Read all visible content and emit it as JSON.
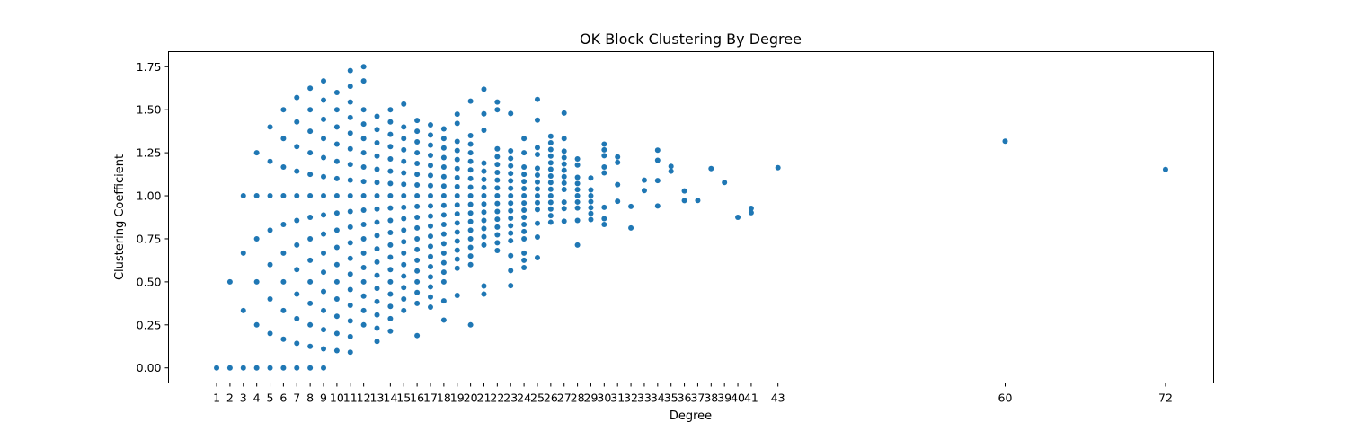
{
  "chart_data": {
    "type": "scatter",
    "title": "OK Block Clustering By Degree",
    "xlabel": "Degree",
    "ylabel": "Clustering Coefficient",
    "xlim": [
      -2.6,
      75.6
    ],
    "ylim": [
      -0.0875,
      1.8375
    ],
    "grid": false,
    "color": "#1f77b4",
    "x_ticks": [
      1,
      2,
      3,
      4,
      5,
      6,
      7,
      8,
      9,
      10,
      11,
      12,
      13,
      14,
      15,
      16,
      17,
      18,
      19,
      20,
      21,
      22,
      23,
      24,
      25,
      26,
      27,
      28,
      29,
      30,
      31,
      32,
      33,
      34,
      35,
      36,
      37,
      38,
      39,
      40,
      41,
      43,
      60,
      72
    ],
    "y_ticks": [
      0.0,
      0.25,
      0.5,
      0.75,
      1.0,
      1.25,
      1.5,
      1.75
    ],
    "y_tick_labels": [
      "0.00",
      "0.25",
      "0.50",
      "0.75",
      "1.00",
      "1.25",
      "1.50",
      "1.75"
    ],
    "points": [
      [
        1,
        0
      ],
      [
        2,
        0
      ],
      [
        2,
        0.5
      ],
      [
        3,
        0
      ],
      [
        3,
        0.333
      ],
      [
        3,
        0.667
      ],
      [
        3,
        1.0
      ],
      [
        4,
        0
      ],
      [
        4,
        0.25
      ],
      [
        4,
        0.5
      ],
      [
        4,
        0.75
      ],
      [
        4,
        1.0
      ],
      [
        4,
        1.25
      ],
      [
        5,
        0
      ],
      [
        5,
        0.2
      ],
      [
        5,
        0.4
      ],
      [
        5,
        0.6
      ],
      [
        5,
        0.8
      ],
      [
        5,
        1.0
      ],
      [
        5,
        1.2
      ],
      [
        5,
        1.4
      ],
      [
        6,
        0
      ],
      [
        6,
        0.167
      ],
      [
        6,
        0.333
      ],
      [
        6,
        0.5
      ],
      [
        6,
        0.667
      ],
      [
        6,
        0.833
      ],
      [
        6,
        1.0
      ],
      [
        6,
        1.167
      ],
      [
        6,
        1.333
      ],
      [
        6,
        1.5
      ],
      [
        7,
        0
      ],
      [
        7,
        0.143
      ],
      [
        7,
        0.286
      ],
      [
        7,
        0.429
      ],
      [
        7,
        0.571
      ],
      [
        7,
        0.714
      ],
      [
        7,
        0.857
      ],
      [
        7,
        1.0
      ],
      [
        7,
        1.143
      ],
      [
        7,
        1.286
      ],
      [
        7,
        1.429
      ],
      [
        7,
        1.571
      ],
      [
        8,
        0
      ],
      [
        8,
        0.125
      ],
      [
        8,
        0.25
      ],
      [
        8,
        0.375
      ],
      [
        8,
        0.5
      ],
      [
        8,
        0.625
      ],
      [
        8,
        0.75
      ],
      [
        8,
        0.875
      ],
      [
        8,
        1.0
      ],
      [
        8,
        1.125
      ],
      [
        8,
        1.25
      ],
      [
        8,
        1.375
      ],
      [
        8,
        1.5
      ],
      [
        8,
        1.625
      ],
      [
        9,
        0
      ],
      [
        9,
        0.111
      ],
      [
        9,
        0.222
      ],
      [
        9,
        0.333
      ],
      [
        9,
        0.444
      ],
      [
        9,
        0.556
      ],
      [
        9,
        0.667
      ],
      [
        9,
        0.778
      ],
      [
        9,
        0.889
      ],
      [
        9,
        1.0
      ],
      [
        9,
        1.111
      ],
      [
        9,
        1.222
      ],
      [
        9,
        1.333
      ],
      [
        9,
        1.444
      ],
      [
        9,
        1.556
      ],
      [
        9,
        1.667
      ],
      [
        10,
        0.1
      ],
      [
        10,
        0.2
      ],
      [
        10,
        0.3
      ],
      [
        10,
        0.4
      ],
      [
        10,
        0.5
      ],
      [
        10,
        0.6
      ],
      [
        10,
        0.7
      ],
      [
        10,
        0.8
      ],
      [
        10,
        0.9
      ],
      [
        10,
        1.0
      ],
      [
        10,
        1.1
      ],
      [
        10,
        1.2
      ],
      [
        10,
        1.3
      ],
      [
        10,
        1.4
      ],
      [
        10,
        1.5
      ],
      [
        10,
        1.6
      ],
      [
        11,
        0.091
      ],
      [
        11,
        0.182
      ],
      [
        11,
        0.273
      ],
      [
        11,
        0.364
      ],
      [
        11,
        0.455
      ],
      [
        11,
        0.545
      ],
      [
        11,
        0.636
      ],
      [
        11,
        0.727
      ],
      [
        11,
        0.818
      ],
      [
        11,
        0.909
      ],
      [
        11,
        1.0
      ],
      [
        11,
        1.091
      ],
      [
        11,
        1.182
      ],
      [
        11,
        1.273
      ],
      [
        11,
        1.364
      ],
      [
        11,
        1.455
      ],
      [
        11,
        1.545
      ],
      [
        11,
        1.636
      ],
      [
        11,
        1.727
      ],
      [
        12,
        0.25
      ],
      [
        12,
        0.333
      ],
      [
        12,
        0.417
      ],
      [
        12,
        0.5
      ],
      [
        12,
        0.583
      ],
      [
        12,
        0.667
      ],
      [
        12,
        0.75
      ],
      [
        12,
        0.833
      ],
      [
        12,
        0.917
      ],
      [
        12,
        1.0
      ],
      [
        12,
        1.083
      ],
      [
        12,
        1.167
      ],
      [
        12,
        1.25
      ],
      [
        12,
        1.333
      ],
      [
        12,
        1.417
      ],
      [
        12,
        1.5
      ],
      [
        12,
        1.667
      ],
      [
        12,
        1.75
      ],
      [
        13,
        0.154
      ],
      [
        13,
        0.231
      ],
      [
        13,
        0.308
      ],
      [
        13,
        0.385
      ],
      [
        13,
        0.462
      ],
      [
        13,
        0.538
      ],
      [
        13,
        0.615
      ],
      [
        13,
        0.692
      ],
      [
        13,
        0.769
      ],
      [
        13,
        0.846
      ],
      [
        13,
        0.923
      ],
      [
        13,
        1.0
      ],
      [
        13,
        1.077
      ],
      [
        13,
        1.154
      ],
      [
        13,
        1.231
      ],
      [
        13,
        1.308
      ],
      [
        13,
        1.385
      ],
      [
        13,
        1.462
      ],
      [
        14,
        0.214
      ],
      [
        14,
        0.286
      ],
      [
        14,
        0.357
      ],
      [
        14,
        0.429
      ],
      [
        14,
        0.5
      ],
      [
        14,
        0.571
      ],
      [
        14,
        0.643
      ],
      [
        14,
        0.714
      ],
      [
        14,
        0.786
      ],
      [
        14,
        0.857
      ],
      [
        14,
        0.929
      ],
      [
        14,
        1.0
      ],
      [
        14,
        1.071
      ],
      [
        14,
        1.143
      ],
      [
        14,
        1.214
      ],
      [
        14,
        1.286
      ],
      [
        14,
        1.357
      ],
      [
        14,
        1.429
      ],
      [
        14,
        1.5
      ],
      [
        15,
        0.333
      ],
      [
        15,
        0.4
      ],
      [
        15,
        0.467
      ],
      [
        15,
        0.533
      ],
      [
        15,
        0.6
      ],
      [
        15,
        0.667
      ],
      [
        15,
        0.733
      ],
      [
        15,
        0.8
      ],
      [
        15,
        0.867
      ],
      [
        15,
        0.933
      ],
      [
        15,
        1.0
      ],
      [
        15,
        1.067
      ],
      [
        15,
        1.133
      ],
      [
        15,
        1.2
      ],
      [
        15,
        1.267
      ],
      [
        15,
        1.333
      ],
      [
        15,
        1.4
      ],
      [
        15,
        1.533
      ],
      [
        16,
        0.188
      ],
      [
        16,
        0.375
      ],
      [
        16,
        0.438
      ],
      [
        16,
        0.5
      ],
      [
        16,
        0.563
      ],
      [
        16,
        0.625
      ],
      [
        16,
        0.688
      ],
      [
        16,
        0.75
      ],
      [
        16,
        0.813
      ],
      [
        16,
        0.875
      ],
      [
        16,
        0.938
      ],
      [
        16,
        1.0
      ],
      [
        16,
        1.063
      ],
      [
        16,
        1.125
      ],
      [
        16,
        1.188
      ],
      [
        16,
        1.25
      ],
      [
        16,
        1.313
      ],
      [
        16,
        1.375
      ],
      [
        16,
        1.438
      ],
      [
        17,
        0.353
      ],
      [
        17,
        0.412
      ],
      [
        17,
        0.471
      ],
      [
        17,
        0.529
      ],
      [
        17,
        0.588
      ],
      [
        17,
        0.647
      ],
      [
        17,
        0.706
      ],
      [
        17,
        0.765
      ],
      [
        17,
        0.824
      ],
      [
        17,
        0.882
      ],
      [
        17,
        0.941
      ],
      [
        17,
        1.0
      ],
      [
        17,
        1.059
      ],
      [
        17,
        1.118
      ],
      [
        17,
        1.176
      ],
      [
        17,
        1.235
      ],
      [
        17,
        1.294
      ],
      [
        17,
        1.353
      ],
      [
        17,
        1.412
      ],
      [
        18,
        0.278
      ],
      [
        18,
        0.389
      ],
      [
        18,
        0.5
      ],
      [
        18,
        0.556
      ],
      [
        18,
        0.611
      ],
      [
        18,
        0.667
      ],
      [
        18,
        0.722
      ],
      [
        18,
        0.778
      ],
      [
        18,
        0.833
      ],
      [
        18,
        0.889
      ],
      [
        18,
        0.944
      ],
      [
        18,
        1.0
      ],
      [
        18,
        1.056
      ],
      [
        18,
        1.111
      ],
      [
        18,
        1.167
      ],
      [
        18,
        1.222
      ],
      [
        18,
        1.278
      ],
      [
        18,
        1.333
      ],
      [
        18,
        1.389
      ],
      [
        19,
        0.421
      ],
      [
        19,
        0.579
      ],
      [
        19,
        0.632
      ],
      [
        19,
        0.684
      ],
      [
        19,
        0.737
      ],
      [
        19,
        0.789
      ],
      [
        19,
        0.842
      ],
      [
        19,
        0.895
      ],
      [
        19,
        0.947
      ],
      [
        19,
        1.0
      ],
      [
        19,
        1.053
      ],
      [
        19,
        1.105
      ],
      [
        19,
        1.158
      ],
      [
        19,
        1.211
      ],
      [
        19,
        1.263
      ],
      [
        19,
        1.316
      ],
      [
        19,
        1.421
      ],
      [
        19,
        1.474
      ],
      [
        20,
        0.25
      ],
      [
        20,
        0.6
      ],
      [
        20,
        0.65
      ],
      [
        20,
        0.7
      ],
      [
        20,
        0.75
      ],
      [
        20,
        0.8
      ],
      [
        20,
        0.85
      ],
      [
        20,
        0.9
      ],
      [
        20,
        0.95
      ],
      [
        20,
        1.0
      ],
      [
        20,
        1.05
      ],
      [
        20,
        1.1
      ],
      [
        20,
        1.15
      ],
      [
        20,
        1.2
      ],
      [
        20,
        1.25
      ],
      [
        20,
        1.3
      ],
      [
        20,
        1.35
      ],
      [
        20,
        1.55
      ],
      [
        21,
        0.429
      ],
      [
        21,
        0.476
      ],
      [
        21,
        0.714
      ],
      [
        21,
        0.762
      ],
      [
        21,
        0.81
      ],
      [
        21,
        0.857
      ],
      [
        21,
        0.905
      ],
      [
        21,
        0.952
      ],
      [
        21,
        1.0
      ],
      [
        21,
        1.048
      ],
      [
        21,
        1.095
      ],
      [
        21,
        1.143
      ],
      [
        21,
        1.19
      ],
      [
        21,
        1.381
      ],
      [
        21,
        1.476
      ],
      [
        21,
        1.619
      ],
      [
        22,
        0.682
      ],
      [
        22,
        0.727
      ],
      [
        22,
        0.773
      ],
      [
        22,
        0.818
      ],
      [
        22,
        0.864
      ],
      [
        22,
        0.909
      ],
      [
        22,
        0.955
      ],
      [
        22,
        1.0
      ],
      [
        22,
        1.045
      ],
      [
        22,
        1.091
      ],
      [
        22,
        1.136
      ],
      [
        22,
        1.182
      ],
      [
        22,
        1.227
      ],
      [
        22,
        1.273
      ],
      [
        22,
        1.5
      ],
      [
        22,
        1.545
      ],
      [
        23,
        0.478
      ],
      [
        23,
        0.565
      ],
      [
        23,
        0.652
      ],
      [
        23,
        0.739
      ],
      [
        23,
        0.783
      ],
      [
        23,
        0.826
      ],
      [
        23,
        0.87
      ],
      [
        23,
        0.913
      ],
      [
        23,
        0.957
      ],
      [
        23,
        1.0
      ],
      [
        23,
        1.043
      ],
      [
        23,
        1.087
      ],
      [
        23,
        1.13
      ],
      [
        23,
        1.174
      ],
      [
        23,
        1.217
      ],
      [
        23,
        1.261
      ],
      [
        23,
        1.478
      ],
      [
        24,
        0.583
      ],
      [
        24,
        0.625
      ],
      [
        24,
        0.667
      ],
      [
        24,
        0.75
      ],
      [
        24,
        0.792
      ],
      [
        24,
        0.833
      ],
      [
        24,
        0.875
      ],
      [
        24,
        0.917
      ],
      [
        24,
        0.958
      ],
      [
        24,
        1.0
      ],
      [
        24,
        1.042
      ],
      [
        24,
        1.083
      ],
      [
        24,
        1.125
      ],
      [
        24,
        1.167
      ],
      [
        24,
        1.25
      ],
      [
        24,
        1.333
      ],
      [
        25,
        0.64
      ],
      [
        25,
        0.76
      ],
      [
        25,
        0.84
      ],
      [
        25,
        0.92
      ],
      [
        25,
        0.96
      ],
      [
        25,
        1.0
      ],
      [
        25,
        1.04
      ],
      [
        25,
        1.08
      ],
      [
        25,
        1.12
      ],
      [
        25,
        1.16
      ],
      [
        25,
        1.24
      ],
      [
        25,
        1.28
      ],
      [
        25,
        1.44
      ],
      [
        25,
        1.56
      ],
      [
        26,
        0.846
      ],
      [
        26,
        0.885
      ],
      [
        26,
        0.923
      ],
      [
        26,
        0.962
      ],
      [
        26,
        1.0
      ],
      [
        26,
        1.038
      ],
      [
        26,
        1.077
      ],
      [
        26,
        1.115
      ],
      [
        26,
        1.154
      ],
      [
        26,
        1.192
      ],
      [
        26,
        1.231
      ],
      [
        26,
        1.269
      ],
      [
        26,
        1.308
      ],
      [
        26,
        1.346
      ],
      [
        27,
        0.852
      ],
      [
        27,
        0.926
      ],
      [
        27,
        0.963
      ],
      [
        27,
        1.037
      ],
      [
        27,
        1.074
      ],
      [
        27,
        1.111
      ],
      [
        27,
        1.148
      ],
      [
        27,
        1.185
      ],
      [
        27,
        1.222
      ],
      [
        27,
        1.259
      ],
      [
        27,
        1.333
      ],
      [
        27,
        1.481
      ],
      [
        28,
        0.714
      ],
      [
        28,
        0.857
      ],
      [
        28,
        0.929
      ],
      [
        28,
        0.964
      ],
      [
        28,
        1.0
      ],
      [
        28,
        1.036
      ],
      [
        28,
        1.071
      ],
      [
        28,
        1.107
      ],
      [
        28,
        1.179
      ],
      [
        28,
        1.214
      ],
      [
        29,
        0.862
      ],
      [
        29,
        0.897
      ],
      [
        29,
        0.931
      ],
      [
        29,
        0.966
      ],
      [
        29,
        1.0
      ],
      [
        29,
        1.034
      ],
      [
        29,
        1.103
      ],
      [
        30,
        0.833
      ],
      [
        30,
        0.867
      ],
      [
        30,
        0.933
      ],
      [
        30,
        1.133
      ],
      [
        30,
        1.167
      ],
      [
        30,
        1.233
      ],
      [
        30,
        1.267
      ],
      [
        30,
        1.3
      ],
      [
        31,
        0.968
      ],
      [
        31,
        1.065
      ],
      [
        31,
        1.194
      ],
      [
        31,
        1.226
      ],
      [
        32,
        0.813
      ],
      [
        32,
        0.938
      ],
      [
        33,
        1.03
      ],
      [
        33,
        1.091
      ],
      [
        34,
        0.941
      ],
      [
        34,
        1.088
      ],
      [
        34,
        1.206
      ],
      [
        34,
        1.265
      ],
      [
        35,
        1.143
      ],
      [
        35,
        1.171
      ],
      [
        36,
        0.972
      ],
      [
        36,
        1.028
      ],
      [
        37,
        0.973
      ],
      [
        38,
        1.158
      ],
      [
        39,
        1.077
      ],
      [
        40,
        0.875
      ],
      [
        41,
        0.902
      ],
      [
        41,
        0.927
      ],
      [
        43,
        1.163
      ],
      [
        60,
        1.317
      ],
      [
        72,
        1.153
      ]
    ]
  }
}
